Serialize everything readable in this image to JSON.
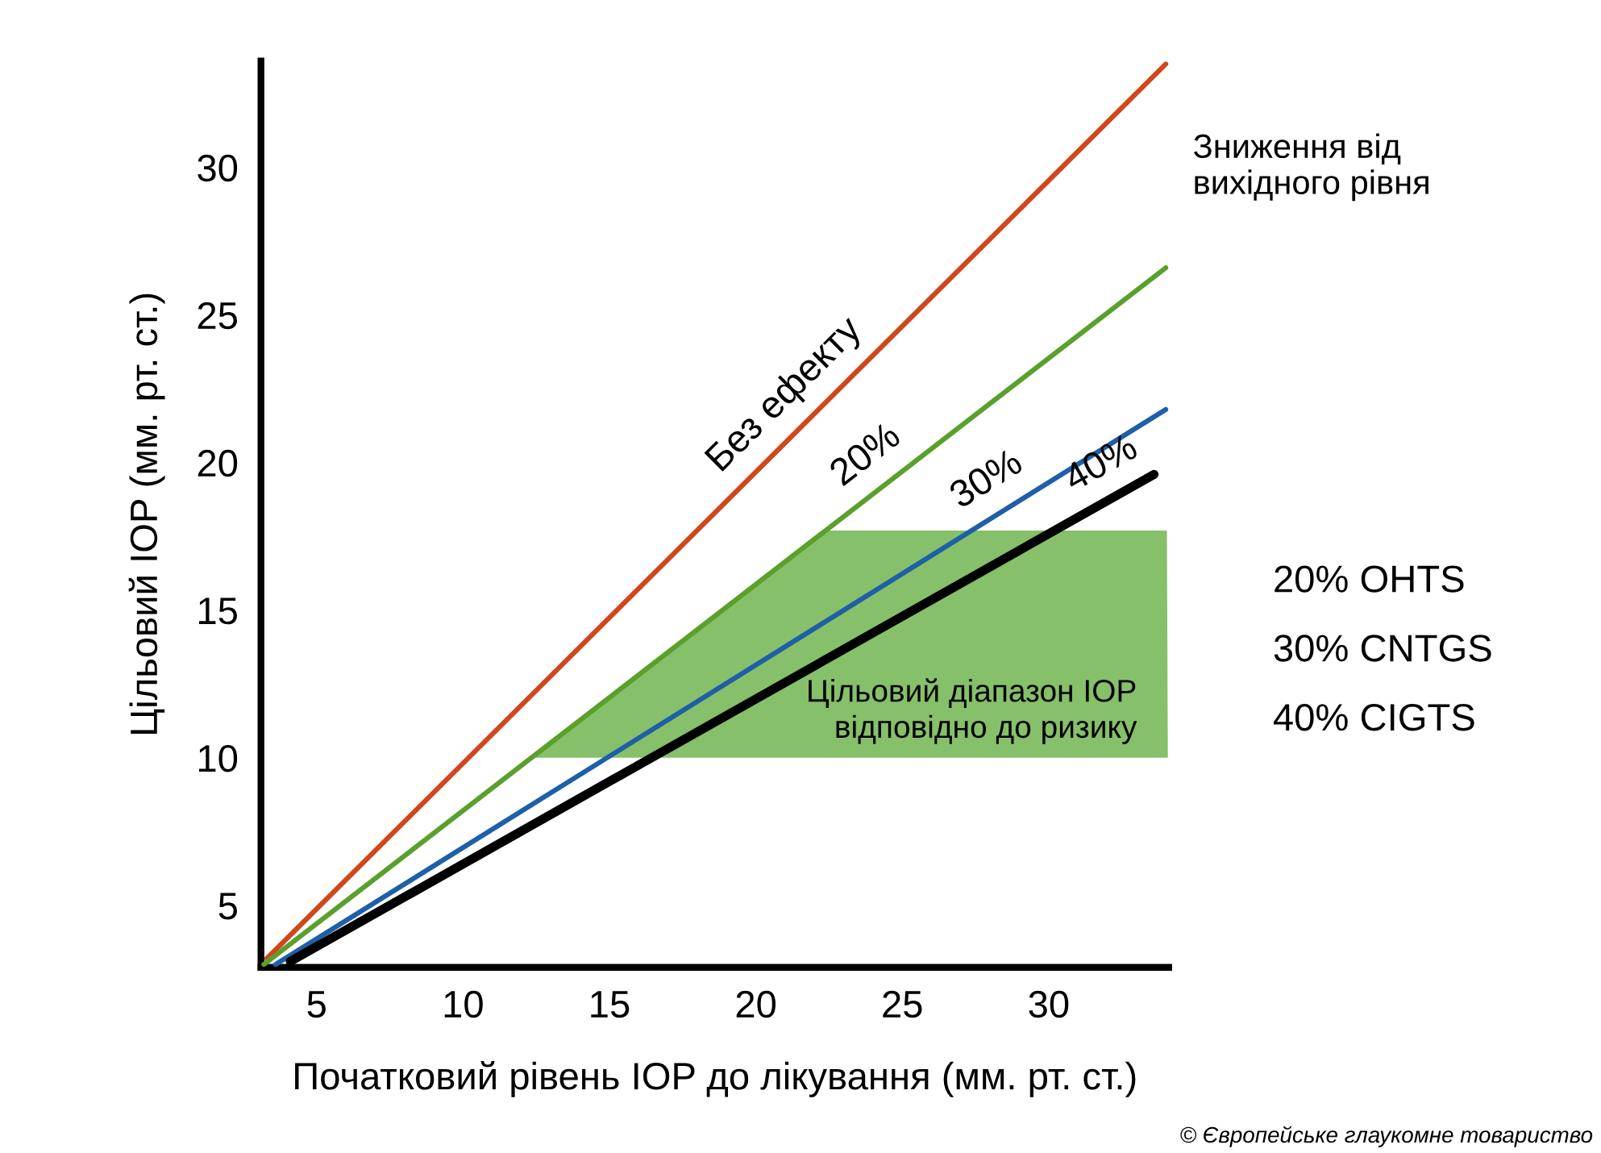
{
  "chart_data": {
    "type": "line",
    "xlabel": "Початковий рівень IOP до лікування (мм. рт. ст.)",
    "ylabel": "Цільовий IOP (мм. рт. ст.)",
    "xlim": [
      3.1,
      34.1
    ],
    "ylim": [
      2.9,
      33.6
    ],
    "xticks": [
      5,
      10,
      15,
      20,
      25,
      30
    ],
    "yticks": [
      5,
      10,
      15,
      20,
      25,
      30
    ],
    "grid": false,
    "series": [
      {
        "name": "Без ефекту",
        "color": "#d2461c",
        "x": [
          3.3,
          34.0
        ],
        "values": [
          3.2,
          33.5
        ]
      },
      {
        "name": "20%",
        "color": "#5aa02c",
        "x": [
          3.2,
          34.0
        ],
        "values": [
          3.0,
          26.6
        ]
      },
      {
        "name": "30%",
        "color": "#1f5fa8",
        "x": [
          3.6,
          34.0
        ],
        "values": [
          3.0,
          21.8
        ]
      },
      {
        "name": "40%",
        "color": "#000000",
        "x": [
          4.1,
          33.6
        ],
        "values": [
          3.1,
          19.6
        ]
      }
    ],
    "bands": [
      {
        "axis": "y",
        "from": 10,
        "to": 17.7,
        "color": "#86c06a",
        "label": "Цільовий діапазон IOP\nвідповідно до ризику"
      }
    ],
    "annotations": [
      "Зниження від\nвихідного рівня",
      "20% OHTS",
      "30% CNTGS",
      "40% CIGTS",
      "© Європейське глаукомне товариство"
    ]
  }
}
